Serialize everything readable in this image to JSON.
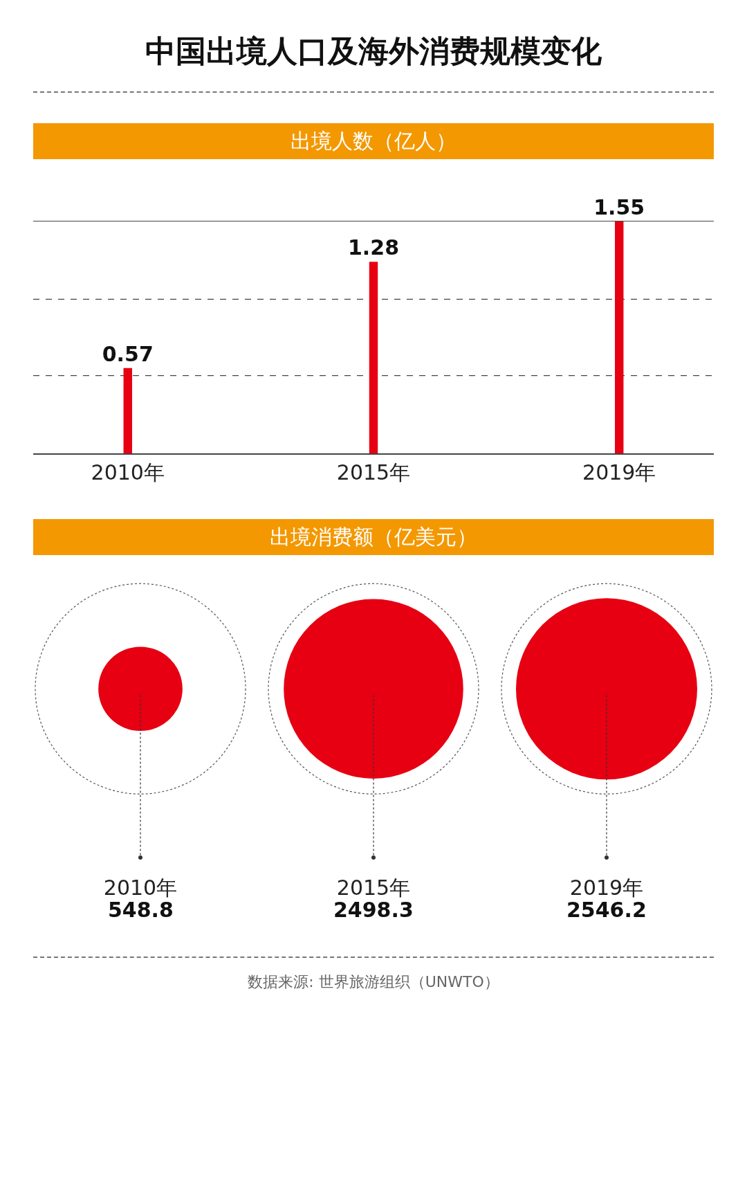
{
  "chart_data": [
    {
      "type": "bar",
      "title": "中国出境人口及海外消费规模变化",
      "subtitle": "出境人数（亿人）",
      "categories": [
        "2010年",
        "2015年",
        "2019年"
      ],
      "values": [
        0.57,
        1.28,
        1.55
      ],
      "color": "#e60012",
      "ylim": [
        0,
        1.55
      ],
      "ref_lines": [
        {
          "axis": "y",
          "value": 0.52,
          "line_style": "dashed",
          "color": "#444444"
        },
        {
          "axis": "y",
          "value": 1.03,
          "line_style": "dashed",
          "color": "#444444"
        }
      ],
      "tick_labels": "x",
      "data_labels": true
    },
    {
      "type": "other",
      "title": "出境消费额（亿美元）",
      "categories": [
        "2010年",
        "2015年",
        "2019年"
      ],
      "values": [
        548.8,
        2498.3,
        2546.2
      ],
      "colors": [
        "#e60012",
        "#e60012",
        "#e60012"
      ],
      "data_labels": true,
      "annotations": [
        "数据来源: 世界旅游组织（UNWTO）"
      ]
    }
  ]
}
